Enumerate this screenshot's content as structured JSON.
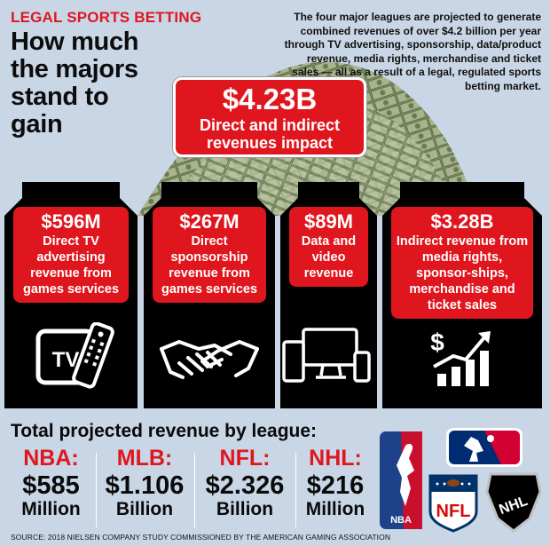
{
  "kicker": "LEGAL SPORTS BETTING",
  "headline": "How much the majors stand to gain",
  "intro": "The four major leagues are projected to generate combined revenues of over $4.2 billion per year through TV advertising, sponsorship, data/product revenue, media rights, merchandise and ticket sales — all as a result of a legal, regulated sports betting market.",
  "total": {
    "amount": "$4.23B",
    "label": "Direct and indirect revenues impact"
  },
  "colors": {
    "accent": "#e0161e",
    "card": "#000000",
    "background": "#c9d6e6"
  },
  "cards": [
    {
      "amount": "$596M",
      "description": "Direct TV advertising revenue from games services",
      "icon": "tv-remote-icon"
    },
    {
      "amount": "$267M",
      "description": "Direct sponsorship revenue from games services",
      "icon": "handshake-icon"
    },
    {
      "amount": "$89M",
      "description": "Data and video revenue",
      "icon": "devices-icon"
    },
    {
      "amount": "$3.28B",
      "description": "Indirect revenue from media rights, sponsor-ships, merchandise and ticket sales",
      "icon": "dollar-growth-icon"
    }
  ],
  "league_section": {
    "title": "Total projected revenue by league:",
    "leagues": [
      {
        "abbr": "NBA:",
        "value": "$585",
        "unit": "Million"
      },
      {
        "abbr": "MLB:",
        "value": "$1.106",
        "unit": "Billion"
      },
      {
        "abbr": "NFL:",
        "value": "$2.326",
        "unit": "Billion"
      },
      {
        "abbr": "NHL:",
        "value": "$216",
        "unit": "Million"
      }
    ],
    "logos": {
      "nba": "NBA",
      "nfl": "NFL",
      "nhl": "NHL"
    }
  },
  "source": "SOURCE: 2018 NIELSEN COMPANY STUDY COMMISSIONED BY THE AMERICAN GAMING ASSOCIATION",
  "chart_data": {
    "type": "table",
    "title": "",
    "revenue_types": {
      "categories": [
        "Direct TV advertising revenue from games services",
        "Direct sponsorship revenue from games services",
        "Data and video revenue",
        "Indirect revenue from media rights, sponsor-ships, merchandise and ticket sales"
      ],
      "values": [
        596,
        267,
        89,
        3280
      ],
      "unit": "$M",
      "total": 4230
    },
    "by_league": {
      "categories": [
        "NBA",
        "MLB",
        "NFL",
        "NHL"
      ],
      "values": [
        585,
        1106,
        2326,
        216
      ],
      "unit": "$M"
    }
  }
}
